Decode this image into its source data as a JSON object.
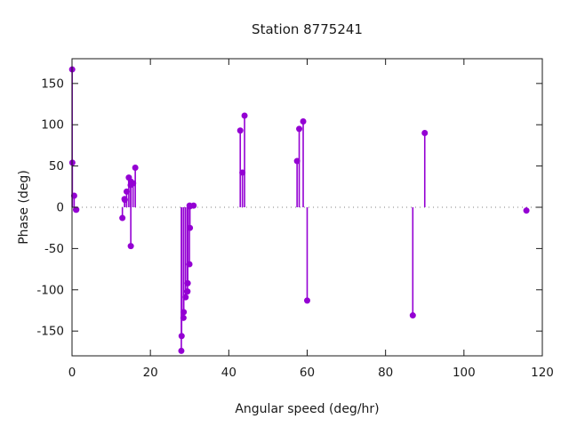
{
  "title": "Station 8775241",
  "chart_data": {
    "type": "scatter",
    "style": "impulses-with-points",
    "title": "Station 8775241",
    "xlabel": "Angular speed (deg/hr)",
    "ylabel": "Phase (deg)",
    "xlim": [
      0,
      120
    ],
    "ylim": [
      -180,
      180
    ],
    "xticks": [
      0,
      20,
      40,
      60,
      80,
      100,
      120
    ],
    "yticks": [
      -150,
      -100,
      -50,
      0,
      50,
      100,
      150
    ],
    "zero_line_dotted": true,
    "grid": false,
    "legend": "none",
    "point_color": "#9400d3",
    "axis_color": "#1a1a1a",
    "zero_line_color": "#7f7f7f",
    "points": [
      {
        "x": 0.041,
        "y": 167
      },
      {
        "x": 0.082,
        "y": 54
      },
      {
        "x": 0.544,
        "y": 14
      },
      {
        "x": 1.016,
        "y": -3
      },
      {
        "x": 1.098,
        "y": -3
      },
      {
        "x": 12.854,
        "y": -13
      },
      {
        "x": 13.399,
        "y": 10
      },
      {
        "x": 13.472,
        "y": 9
      },
      {
        "x": 13.943,
        "y": 19
      },
      {
        "x": 14.497,
        "y": 36
      },
      {
        "x": 14.959,
        "y": 27
      },
      {
        "x": 15.0,
        "y": -47
      },
      {
        "x": 15.041,
        "y": 31
      },
      {
        "x": 15.585,
        "y": 29
      },
      {
        "x": 16.139,
        "y": 48
      },
      {
        "x": 27.895,
        "y": -174
      },
      {
        "x": 27.968,
        "y": -156
      },
      {
        "x": 28.44,
        "y": -134
      },
      {
        "x": 28.513,
        "y": -127
      },
      {
        "x": 28.984,
        "y": -109
      },
      {
        "x": 29.456,
        "y": -102
      },
      {
        "x": 29.528,
        "y": -92
      },
      {
        "x": 29.959,
        "y": -69
      },
      {
        "x": 30.0,
        "y": 2
      },
      {
        "x": 30.041,
        "y": 1
      },
      {
        "x": 30.082,
        "y": -25
      },
      {
        "x": 31.016,
        "y": 2
      },
      {
        "x": 42.927,
        "y": 93
      },
      {
        "x": 43.476,
        "y": 42
      },
      {
        "x": 44.025,
        "y": 111
      },
      {
        "x": 57.424,
        "y": 56
      },
      {
        "x": 57.968,
        "y": 95
      },
      {
        "x": 58.984,
        "y": 104
      },
      {
        "x": 60.0,
        "y": -113
      },
      {
        "x": 86.952,
        "y": -131
      },
      {
        "x": 90.0,
        "y": 90
      },
      {
        "x": 115.936,
        "y": -4
      }
    ]
  }
}
